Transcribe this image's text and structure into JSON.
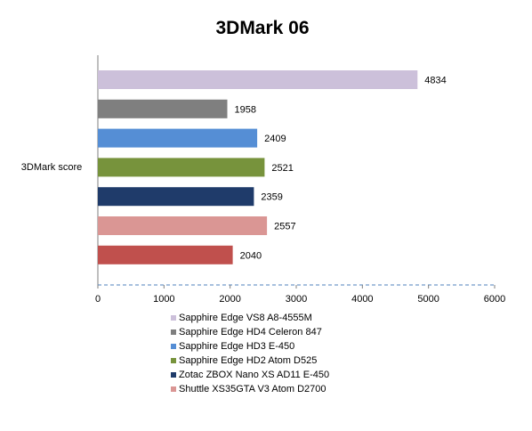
{
  "chart_data": {
    "type": "bar",
    "orientation": "horizontal",
    "title": "3DMark 06",
    "categories": [
      "3DMark score"
    ],
    "xlim": [
      0,
      6000
    ],
    "ticks": [
      "0",
      "1000",
      "2000",
      "3000",
      "4000",
      "5000",
      "6000"
    ],
    "grid": false,
    "legend_position": "bottom",
    "series": [
      {
        "name": "Sapphire Edge VS8 A8-4555M",
        "values": [
          4834
        ],
        "color": "#CCC0DA"
      },
      {
        "name": "Sapphire Edge HD4 Celeron 847",
        "values": [
          1958
        ],
        "color": "#7F7F7F"
      },
      {
        "name": "Sapphire Edge HD3 E-450",
        "values": [
          2409
        ],
        "color": "#558ED5"
      },
      {
        "name": "Sapphire Edge HD2 Atom D525",
        "values": [
          2521
        ],
        "color": "#77933C"
      },
      {
        "name": "Zotac ZBOX Nano XS AD11 E-450",
        "values": [
          2359
        ],
        "color": "#1F3B6A"
      },
      {
        "name": "Shuttle XS35GTA V3 Atom D2700",
        "values": [
          2557
        ],
        "color": "#DA9694"
      },
      {
        "name": "",
        "values": [
          2040
        ],
        "color": "#C0504D"
      }
    ]
  }
}
